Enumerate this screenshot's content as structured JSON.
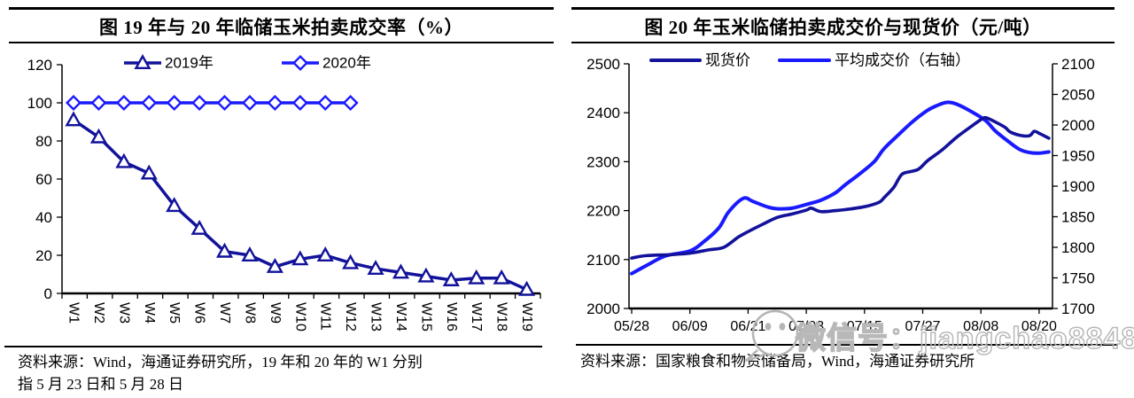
{
  "colors": {
    "navy": "#12129B",
    "blue": "#1A1AFF",
    "axis": "#000000",
    "text": "#000000",
    "watermark": "#B8B8B8"
  },
  "left_panel": {
    "title": "图  19 年与 20 年临储玉米拍卖成交率（%）",
    "footnote_line1": "资料来源：Wind，海通证券研究所，19 年和 20 年的 W1 分别",
    "footnote_line2": "指 5 月 23 日和 5 月 28 日"
  },
  "right_panel": {
    "title": "图  20 年玉米临储拍卖成交价与现货价（元/吨）",
    "footnote": "资料来源：国家粮食和物资储备局，Wind，海通证券研究所"
  },
  "watermark": {
    "icon": "wechat-icon",
    "text": "微信号：jiangchao8848"
  },
  "chart_data": [
    {
      "type": "line",
      "panel": "left",
      "title": "图 19 年与 20 年临储玉米拍卖成交率（%）",
      "categories": [
        "W1",
        "W2",
        "W3",
        "W4",
        "W5",
        "W6",
        "W7",
        "W8",
        "W9",
        "W10",
        "W11",
        "W12",
        "W13",
        "W14",
        "W15",
        "W16",
        "W17",
        "W18",
        "W19"
      ],
      "ylim": [
        0,
        120
      ],
      "ytick_step": 20,
      "grid": false,
      "legend_position": "top-center",
      "series": [
        {
          "name": "2019年",
          "color": "navy",
          "marker": "triangle",
          "values": [
            91,
            82,
            69,
            63,
            46,
            34,
            22,
            20,
            14,
            18,
            20,
            16,
            13,
            11,
            9,
            7,
            8,
            8,
            2
          ]
        },
        {
          "name": "2020年",
          "color": "blue",
          "marker": "diamond",
          "values": [
            100,
            100,
            100,
            100,
            100,
            100,
            100,
            100,
            100,
            100,
            100,
            100
          ]
        }
      ]
    },
    {
      "type": "line",
      "panel": "right",
      "title": "图 20 年玉米临储拍卖成交价与现货价（元/吨）",
      "x_axis": {
        "tick_labels": [
          "05/28",
          "06/09",
          "06/21",
          "07/03",
          "07/15",
          "07/27",
          "08/08",
          "08/20"
        ],
        "tick_day_positions": [
          0,
          12,
          24,
          36,
          48,
          60,
          72,
          84
        ],
        "xlim": [
          0,
          86
        ]
      },
      "left_axis": {
        "lim": [
          2000,
          2500
        ],
        "tick_step": 100
      },
      "right_axis": {
        "lim": [
          1700,
          2100
        ],
        "tick_step": 50
      },
      "grid": false,
      "legend_position": "top-center",
      "series": [
        {
          "name": "现货价",
          "axis": "left",
          "color": "navy",
          "marker": "none",
          "points": [
            [
              0,
              2103
            ],
            [
              3,
              2108
            ],
            [
              8,
              2110
            ],
            [
              12,
              2113
            ],
            [
              16,
              2120
            ],
            [
              19,
              2125
            ],
            [
              22,
              2146
            ],
            [
              24,
              2157
            ],
            [
              27,
              2172
            ],
            [
              30,
              2186
            ],
            [
              33,
              2193
            ],
            [
              36,
              2201
            ],
            [
              37,
              2205
            ],
            [
              39,
              2198
            ],
            [
              42,
              2200
            ],
            [
              44,
              2202
            ],
            [
              48,
              2208
            ],
            [
              51,
              2217
            ],
            [
              52,
              2226
            ],
            [
              54,
              2247
            ],
            [
              55,
              2264
            ],
            [
              56,
              2276
            ],
            [
              59,
              2284
            ],
            [
              61,
              2302
            ],
            [
              64,
              2324
            ],
            [
              67,
              2350
            ],
            [
              70,
              2372
            ],
            [
              72,
              2386
            ],
            [
              73,
              2390
            ],
            [
              75,
              2381
            ],
            [
              77,
              2370
            ],
            [
              78,
              2361
            ],
            [
              80,
              2354
            ],
            [
              82,
              2353
            ],
            [
              83,
              2362
            ],
            [
              84,
              2358
            ],
            [
              86,
              2348
            ]
          ]
        },
        {
          "name": "平均成交价（右轴）",
          "axis": "right",
          "color": "blue",
          "marker": "none",
          "points": [
            [
              0,
              1757
            ],
            [
              3,
              1770
            ],
            [
              7,
              1786
            ],
            [
              12,
              1794
            ],
            [
              15,
              1810
            ],
            [
              18,
              1832
            ],
            [
              20,
              1858
            ],
            [
              23,
              1880
            ],
            [
              25,
              1875
            ],
            [
              28,
              1866
            ],
            [
              30,
              1863
            ],
            [
              33,
              1864
            ],
            [
              36,
              1870
            ],
            [
              39,
              1877
            ],
            [
              42,
              1889
            ],
            [
              44,
              1902
            ],
            [
              47,
              1920
            ],
            [
              50,
              1940
            ],
            [
              52,
              1961
            ],
            [
              55,
              1984
            ],
            [
              58,
              2006
            ],
            [
              61,
              2024
            ],
            [
              63,
              2032
            ],
            [
              65,
              2037
            ],
            [
              67,
              2034
            ],
            [
              70,
              2022
            ],
            [
              73,
              2007
            ],
            [
              75,
              1990
            ],
            [
              78,
              1971
            ],
            [
              80,
              1960
            ],
            [
              82,
              1955
            ],
            [
              84,
              1954
            ],
            [
              86,
              1956
            ]
          ]
        }
      ]
    }
  ]
}
